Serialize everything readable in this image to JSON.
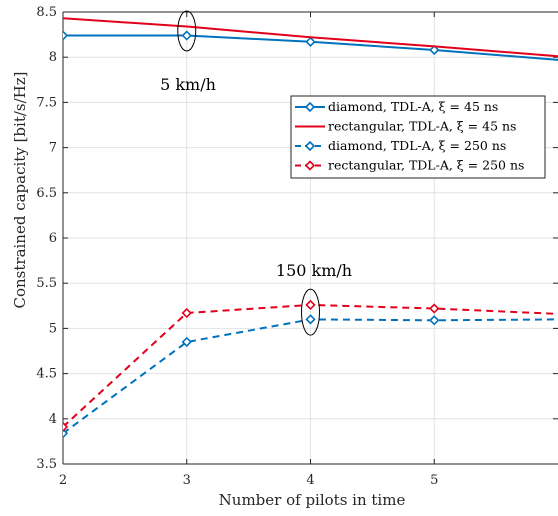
{
  "chart_data": {
    "type": "line",
    "xlabel": "Number of pilots in time",
    "ylabel": "Constrained capacity [bit/s/Hz]",
    "xlim": [
      2,
      6
    ],
    "ylim": [
      3.5,
      8.5
    ],
    "x_ticks": [
      2,
      3,
      4,
      5
    ],
    "y_ticks": [
      3.5,
      4,
      4.5,
      5,
      5.5,
      6,
      6.5,
      7,
      7.5,
      8,
      8.5
    ],
    "grid": true,
    "legend_position": "top-right",
    "series": [
      {
        "name": "diamond, TDL-A, ξ = 45 ns",
        "color": "#0072BD",
        "line_style": "solid",
        "marker": "diamond",
        "x": [
          2,
          3,
          4,
          5,
          6
        ],
        "values": [
          8.24,
          8.24,
          8.17,
          8.08,
          7.97
        ]
      },
      {
        "name": "rectangular, TDL-A, ξ = 45 ns",
        "color": "#E3001B",
        "line_style": "solid",
        "marker": "none",
        "x": [
          2,
          3,
          4,
          5,
          6
        ],
        "values": [
          8.43,
          8.34,
          8.22,
          8.12,
          8.01
        ]
      },
      {
        "name": "diamond, TDL-A, ξ = 250 ns",
        "color": "#0072BD",
        "line_style": "dashed",
        "marker": "diamond",
        "x": [
          2,
          3,
          4,
          5,
          6
        ],
        "values": [
          3.84,
          4.85,
          5.1,
          5.09,
          5.1
        ]
      },
      {
        "name": "rectangular, TDL-A, ξ = 250 ns",
        "color": "#E3001B",
        "line_style": "dashed",
        "marker": "diamond",
        "x": [
          2,
          3,
          4,
          5,
          6
        ],
        "values": [
          3.91,
          5.17,
          5.26,
          5.22,
          5.16
        ]
      }
    ],
    "annotations": [
      {
        "text": "5 km/h",
        "x": 3,
        "y": 8.29
      },
      {
        "text": "150 km/h",
        "x": 4,
        "y": 5.18
      }
    ]
  }
}
